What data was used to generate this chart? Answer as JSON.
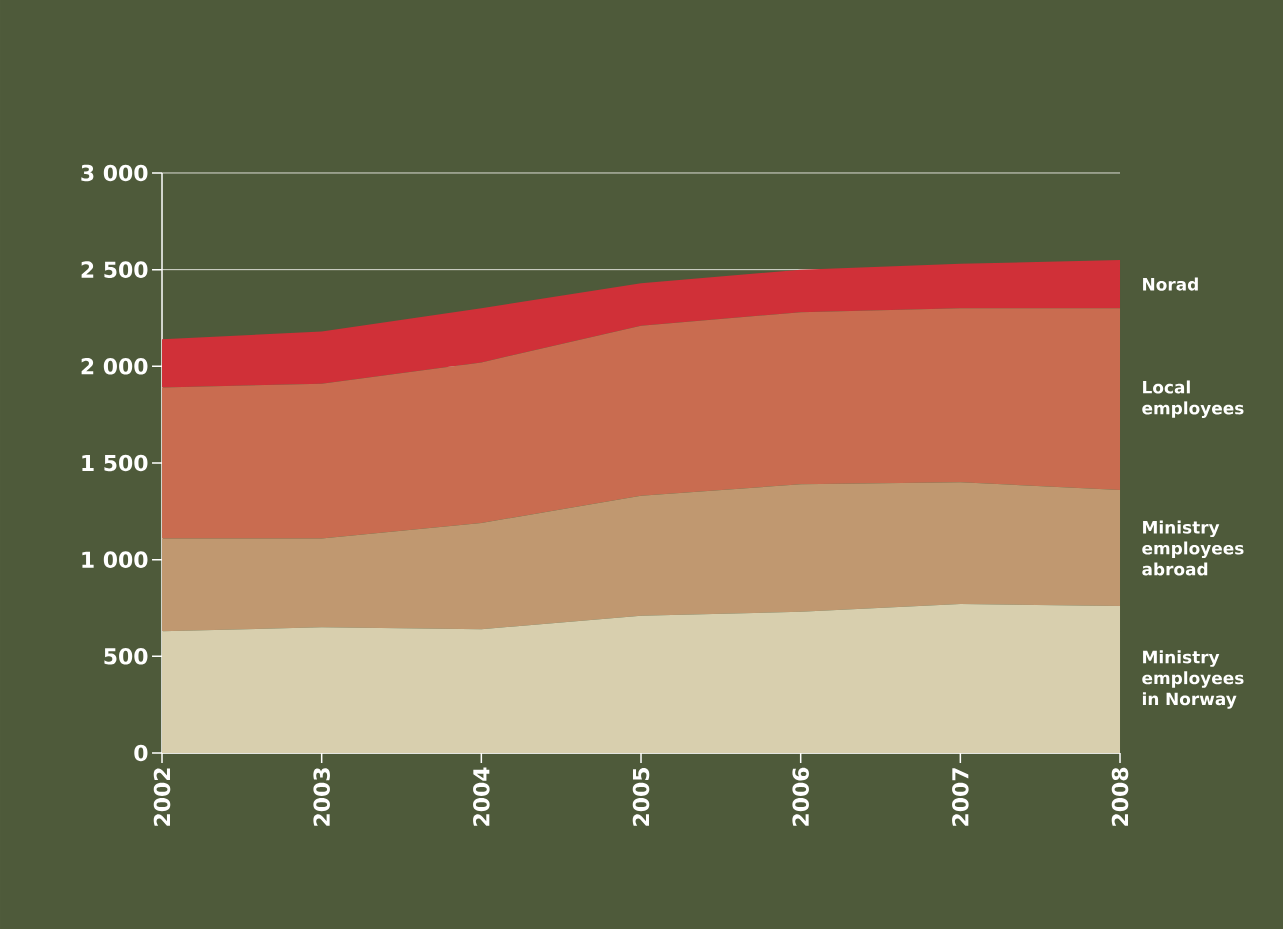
{
  "chart_data": {
    "type": "area",
    "stacked": true,
    "grid": "y",
    "x": [
      2002,
      2003,
      2004,
      2005,
      2006,
      2007,
      2008
    ],
    "xlim": [
      2002,
      2008
    ],
    "xticks": [
      2002,
      2003,
      2004,
      2005,
      2006,
      2007,
      2008
    ],
    "ylim": [
      0,
      3000
    ],
    "yticks": [
      0,
      500,
      {
        "value": 1000,
        "label": "1 000"
      },
      {
        "value": 1500,
        "label": "1 500"
      },
      {
        "value": 2000,
        "label": "2 000"
      },
      {
        "value": 2500,
        "label": "2 500"
      },
      {
        "value": 3000,
        "label": "3 000"
      }
    ],
    "series": [
      {
        "name": "Ministry employees in Norway",
        "color": "#d8cfae",
        "values": [
          630,
          650,
          640,
          710,
          730,
          770,
          760
        ]
      },
      {
        "name": "Ministry employees abroad",
        "color": "#c09870",
        "values": [
          480,
          460,
          550,
          620,
          660,
          630,
          600
        ]
      },
      {
        "name": "Local employees",
        "color": "#c96c50",
        "values": [
          780,
          800,
          830,
          880,
          890,
          900,
          940
        ]
      },
      {
        "name": "Norad",
        "color": "#d03038",
        "values": [
          250,
          270,
          280,
          220,
          220,
          230,
          250
        ]
      }
    ]
  }
}
